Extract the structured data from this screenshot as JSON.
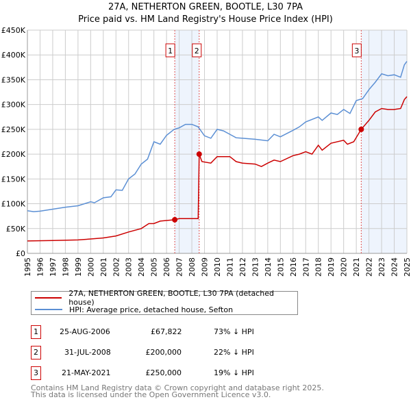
{
  "title": "27A, NETHERTON GREEN, BOOTLE, L30 7PA",
  "subtitle": "Price paid vs. HM Land Registry's House Price Index (HPI)",
  "colors": {
    "price": "#cc0000",
    "hpi": "#5b8fd4",
    "shade": "#eef4fd",
    "grid": "#cccccc"
  },
  "chart_data": {
    "type": "line",
    "title": "27A, NETHERTON GREEN, BOOTLE, L30 7PA",
    "xlim": [
      1995,
      2025
    ],
    "ylim": [
      0,
      450000
    ],
    "y_ticks": [
      0,
      50000,
      100000,
      150000,
      200000,
      250000,
      300000,
      350000,
      400000,
      450000
    ],
    "y_tick_labels": [
      "£0",
      "£50K",
      "£100K",
      "£150K",
      "£200K",
      "£250K",
      "£300K",
      "£350K",
      "£400K",
      "£450K"
    ],
    "x_ticks": [
      "1995",
      "1996",
      "1997",
      "1998",
      "1999",
      "2000",
      "2001",
      "2002",
      "2003",
      "2004",
      "2005",
      "2006",
      "2007",
      "2008",
      "2009",
      "2010",
      "2011",
      "2012",
      "2013",
      "2014",
      "2015",
      "2016",
      "2017",
      "2018",
      "2019",
      "2020",
      "2021",
      "2022",
      "2023",
      "2024",
      "2025"
    ],
    "grid": true,
    "series": [
      {
        "name": "27A, NETHERTON GREEN, BOOTLE, L30 7PA (detached house)",
        "color": "#cc0000",
        "x": [
          1995,
          1997,
          1999,
          2000,
          2001,
          2002,
          2003,
          2004,
          2004.6,
          2005,
          2005.5,
          2006.65,
          2007,
          2008.5,
          2008.58,
          2008.8,
          2009.5,
          2010,
          2011,
          2011.5,
          2012,
          2013,
          2013.5,
          2014,
          2014.5,
          2015,
          2016,
          2016.5,
          2017,
          2017.5,
          2018,
          2018.3,
          2019,
          2020,
          2020.3,
          2020.8,
          2021.39,
          2022,
          2022.5,
          2023,
          2023.5,
          2024,
          2024.5,
          2024.8,
          2025
        ],
        "y": [
          25000,
          26000,
          27000,
          29000,
          31000,
          35000,
          43000,
          50000,
          60000,
          60000,
          65000,
          67822,
          70000,
          70000,
          200000,
          185000,
          182000,
          195000,
          195000,
          185000,
          182000,
          180000,
          175000,
          182000,
          188000,
          185000,
          197000,
          200000,
          205000,
          200000,
          218000,
          208000,
          222000,
          228000,
          220000,
          225000,
          250000,
          268000,
          285000,
          292000,
          290000,
          290000,
          292000,
          310000,
          316000
        ]
      },
      {
        "name": "HPI: Average price, detached house, Sefton",
        "color": "#5b8fd4",
        "x": [
          1995,
          1995.5,
          1996,
          1997,
          1998,
          1999,
          2000,
          2000.3,
          2001,
          2001.6,
          2002,
          2002.5,
          2003,
          2003.5,
          2004,
          2004.5,
          2005,
          2005.5,
          2006,
          2006.6,
          2007,
          2007.5,
          2008,
          2008.5,
          2009,
          2009.5,
          2010,
          2010.5,
          2011,
          2011.5,
          2012,
          2013,
          2014,
          2014.5,
          2015,
          2016,
          2016.5,
          2017,
          2018,
          2018.3,
          2019,
          2019.5,
          2020,
          2020.5,
          2021,
          2021.5,
          2022,
          2022.5,
          2023,
          2023.5,
          2024,
          2024.5,
          2024.8,
          2025
        ],
        "y": [
          86000,
          84000,
          85000,
          89000,
          93000,
          96000,
          104000,
          102000,
          112000,
          114000,
          128000,
          127000,
          150000,
          160000,
          180000,
          190000,
          225000,
          220000,
          238000,
          250000,
          253000,
          260000,
          260000,
          255000,
          237000,
          232000,
          250000,
          247000,
          240000,
          233000,
          232000,
          230000,
          227000,
          240000,
          235000,
          248000,
          255000,
          265000,
          275000,
          268000,
          283000,
          280000,
          290000,
          282000,
          308000,
          312000,
          330000,
          345000,
          362000,
          358000,
          360000,
          355000,
          380000,
          387000
        ]
      }
    ],
    "sales": [
      {
        "id": "1",
        "x": 2006.65,
        "y": 67822
      },
      {
        "id": "2",
        "x": 2008.58,
        "y": 200000
      },
      {
        "id": "3",
        "x": 2021.39,
        "y": 250000
      }
    ],
    "shaded_ranges": [
      [
        2006.65,
        2008.58
      ],
      [
        2021.39,
        2025
      ]
    ],
    "legend_position": "below"
  },
  "legend": {
    "price_label": "27A, NETHERTON GREEN, BOOTLE, L30 7PA (detached house)",
    "hpi_label": "HPI: Average price, detached house, Sefton"
  },
  "transactions": [
    {
      "num": "1",
      "date": "25-AUG-2006",
      "price": "£67,822",
      "hpi": "73% ↓ HPI"
    },
    {
      "num": "2",
      "date": "31-JUL-2008",
      "price": "£200,000",
      "hpi": "22% ↓ HPI"
    },
    {
      "num": "3",
      "date": "21-MAY-2021",
      "price": "£250,000",
      "hpi": "19% ↓ HPI"
    }
  ],
  "footer": {
    "line1": "Contains HM Land Registry data © Crown copyright and database right 2025.",
    "line2": "This data is licensed under the Open Government Licence v3.0."
  }
}
